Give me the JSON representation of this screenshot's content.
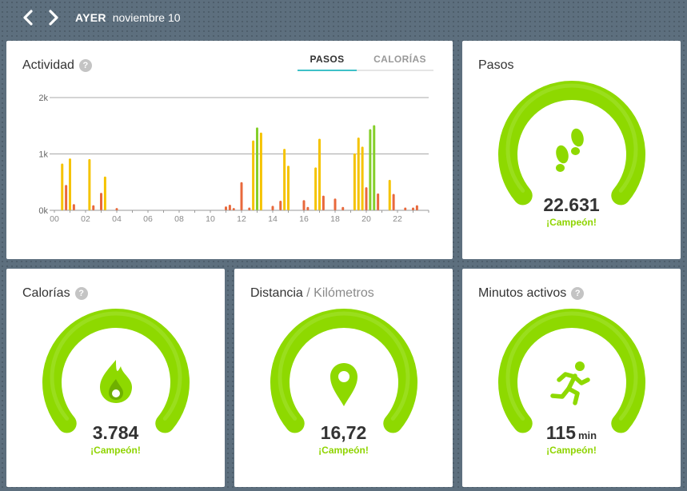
{
  "header": {
    "day": "AYER",
    "date": "noviembre 10"
  },
  "colors": {
    "gauge": "#8ed900",
    "gauge_light": "#a6e33a",
    "yellow": "#f5c300",
    "green": "#85cf2a",
    "orange": "#e8693c",
    "tab_accent": "#3ec1c8"
  },
  "activity": {
    "title": "Actividad",
    "help": "?",
    "tabs": [
      "PASOS",
      "CALORÍAS"
    ],
    "active_tab": "PASOS"
  },
  "chart_data": {
    "type": "bar",
    "xlabel": "",
    "ylabel": "",
    "ylim": [
      0,
      2000
    ],
    "yticks": [
      {
        "v": 0,
        "label": "0k"
      },
      {
        "v": 1000,
        "label": "1k"
      },
      {
        "v": 2000,
        "label": "2k"
      }
    ],
    "xlim": [
      0,
      24
    ],
    "xticks": [
      {
        "v": 0,
        "label": "00"
      },
      {
        "v": 2,
        "label": "02"
      },
      {
        "v": 4,
        "label": "04"
      },
      {
        "v": 6,
        "label": "06"
      },
      {
        "v": 8,
        "label": "08"
      },
      {
        "v": 10,
        "label": "10"
      },
      {
        "v": 12,
        "label": "12"
      },
      {
        "v": 14,
        "label": "14"
      },
      {
        "v": 16,
        "label": "16"
      },
      {
        "v": 18,
        "label": "18"
      },
      {
        "v": 20,
        "label": "20"
      },
      {
        "v": 22,
        "label": "22"
      }
    ],
    "bars": [
      {
        "x": 0.5,
        "y": 830,
        "c": "yellow"
      },
      {
        "x": 0.75,
        "y": 450,
        "c": "orange"
      },
      {
        "x": 1.0,
        "y": 920,
        "c": "yellow"
      },
      {
        "x": 1.25,
        "y": 110,
        "c": "orange"
      },
      {
        "x": 2.25,
        "y": 910,
        "c": "yellow"
      },
      {
        "x": 2.5,
        "y": 90,
        "c": "orange"
      },
      {
        "x": 3.0,
        "y": 310,
        "c": "orange"
      },
      {
        "x": 3.25,
        "y": 600,
        "c": "yellow"
      },
      {
        "x": 4.0,
        "y": 40,
        "c": "orange"
      },
      {
        "x": 11.0,
        "y": 70,
        "c": "orange"
      },
      {
        "x": 11.25,
        "y": 100,
        "c": "orange"
      },
      {
        "x": 11.5,
        "y": 40,
        "c": "orange"
      },
      {
        "x": 12.0,
        "y": 500,
        "c": "orange"
      },
      {
        "x": 12.5,
        "y": 50,
        "c": "orange"
      },
      {
        "x": 12.75,
        "y": 1240,
        "c": "yellow"
      },
      {
        "x": 13.0,
        "y": 1470,
        "c": "green"
      },
      {
        "x": 13.25,
        "y": 1380,
        "c": "yellow"
      },
      {
        "x": 14.0,
        "y": 80,
        "c": "orange"
      },
      {
        "x": 14.5,
        "y": 170,
        "c": "orange"
      },
      {
        "x": 14.75,
        "y": 1090,
        "c": "yellow"
      },
      {
        "x": 15.0,
        "y": 790,
        "c": "yellow"
      },
      {
        "x": 16.0,
        "y": 180,
        "c": "orange"
      },
      {
        "x": 16.25,
        "y": 60,
        "c": "orange"
      },
      {
        "x": 16.75,
        "y": 760,
        "c": "yellow"
      },
      {
        "x": 17.0,
        "y": 1270,
        "c": "yellow"
      },
      {
        "x": 17.25,
        "y": 260,
        "c": "orange"
      },
      {
        "x": 18.0,
        "y": 210,
        "c": "orange"
      },
      {
        "x": 18.5,
        "y": 60,
        "c": "orange"
      },
      {
        "x": 19.25,
        "y": 1010,
        "c": "yellow"
      },
      {
        "x": 19.5,
        "y": 1290,
        "c": "yellow"
      },
      {
        "x": 19.75,
        "y": 1130,
        "c": "yellow"
      },
      {
        "x": 20.0,
        "y": 410,
        "c": "orange"
      },
      {
        "x": 20.25,
        "y": 1440,
        "c": "green"
      },
      {
        "x": 20.5,
        "y": 1510,
        "c": "green"
      },
      {
        "x": 20.75,
        "y": 300,
        "c": "orange"
      },
      {
        "x": 21.5,
        "y": 540,
        "c": "yellow"
      },
      {
        "x": 21.75,
        "y": 290,
        "c": "orange"
      },
      {
        "x": 22.5,
        "y": 50,
        "c": "orange"
      },
      {
        "x": 23.0,
        "y": 50,
        "c": "orange"
      },
      {
        "x": 23.25,
        "y": 90,
        "c": "orange"
      }
    ]
  },
  "steps": {
    "title": "Pasos",
    "icon": "footprints-icon",
    "value": "22.631",
    "status": "¡Campeón!",
    "progress": 1.0
  },
  "calories": {
    "title": "Calorías",
    "help": "?",
    "icon": "flame-icon",
    "value": "3.784",
    "status": "¡Campeón!",
    "progress": 1.0
  },
  "distance": {
    "title": "Distancia",
    "separator": " / ",
    "subtitle": "Kilómetros",
    "icon": "map-pin-icon",
    "value": "16,72",
    "status": "¡Campeón!",
    "progress": 1.0
  },
  "active_minutes": {
    "title": "Minutos activos",
    "help": "?",
    "icon": "running-person-icon",
    "value": "115",
    "unit": "min",
    "status": "¡Campeón!",
    "progress": 1.0
  }
}
